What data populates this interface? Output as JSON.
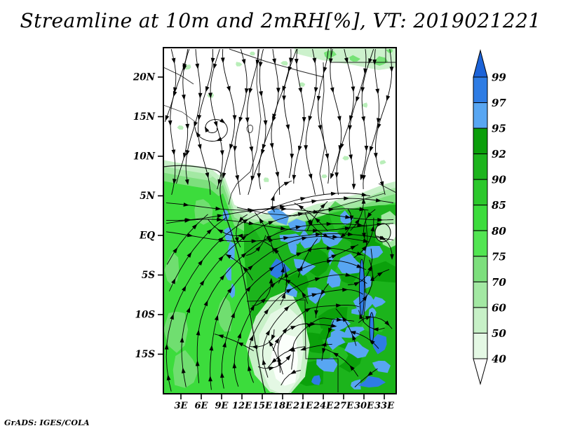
{
  "title": "Streamline at 10m and 2mRH[%], VT: 2019021221",
  "credit": "GrADS: IGES/COLA",
  "chart_data": {
    "type": "streamline-map",
    "title": "Streamline at 10m and 2mRH[%], VT: 2019021221",
    "shaded_field": "2 m relative humidity [%]",
    "overlay": "10 m wind streamlines",
    "valid_time": "2019021221",
    "x_ticks": [
      "3E",
      "6E",
      "9E",
      "12E",
      "15E",
      "18E",
      "21E",
      "24E",
      "27E",
      "30E",
      "33E"
    ],
    "y_ticks": [
      "20N",
      "15N",
      "10N",
      "5N",
      "EQ",
      "5S",
      "10S",
      "15S"
    ],
    "approx_domain": {
      "lon_east": [
        0,
        35
      ],
      "lat": [
        -20,
        24
      ]
    },
    "grid": false,
    "colorbar": {
      "position": "right",
      "levels": [
        40,
        50,
        60,
        70,
        75,
        80,
        85,
        90,
        92,
        95,
        97,
        99
      ],
      "segment_colors_low_to_high": [
        "#e4f8e4",
        "#c7f0c7",
        "#a3e8a3",
        "#7ddf7d",
        "#52e552",
        "#3cdc3c",
        "#2cc82c",
        "#1cb41c",
        "#0a9e0a",
        "#58a6f2",
        "#2e7ce4"
      ],
      "over_color": "#1c63d8",
      "under_color": "#ffffff"
    },
    "features": [
      {
        "region": "North of ~8N (Sahel / Sahara)",
        "rh": "below 40 (unshaded white), scattered specks 40-60"
      },
      {
        "region": "Gulf of Guinea coast and tropical South Atlantic",
        "rh": "70-90 (bright green)"
      },
      {
        "region": "Congo Basin, ~15E-30E and EQ-15S",
        "rh": "85-95 (dark green) with many 95-99 patches (blue)"
      },
      {
        "region": "Coastal Angola, ~12-15E and 8-16S",
        "rh": "40-60 (pale/white patch)"
      },
      {
        "region": "Top-right corner ~22N",
        "rh": "40-70 pale green strip"
      },
      {
        "flow": "Northeasterly harmattan flowing southward over the Sahara/Sahel; South Atlantic flow runs northward along the Angola coast and turns eastward near the equator into the Congo Basin; small closed vortex near 6E,15N"
      }
    ]
  }
}
